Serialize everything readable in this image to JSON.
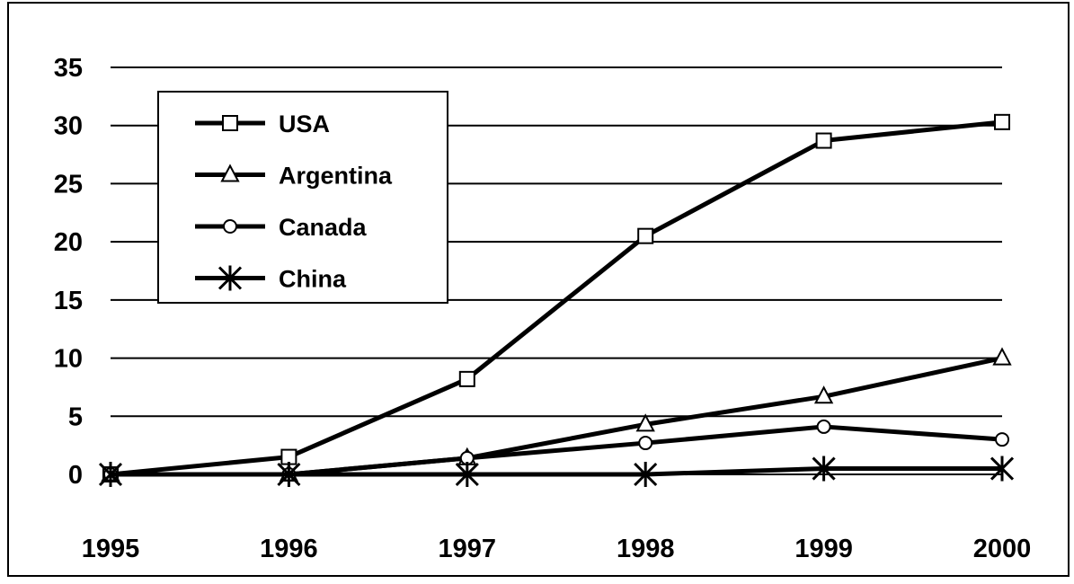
{
  "chart_data": {
    "type": "line",
    "title": "",
    "xlabel": "",
    "ylabel": "",
    "x": [
      "1995",
      "1996",
      "1997",
      "1998",
      "1999",
      "2000"
    ],
    "ylim": [
      0,
      35
    ],
    "yticks": [
      "0",
      "5",
      "10",
      "15",
      "20",
      "25",
      "30",
      "35"
    ],
    "grid": "horizontal",
    "legend_position": "top-left",
    "series": [
      {
        "name": "USA",
        "marker": "square",
        "values": [
          0,
          1.5,
          8.2,
          20.5,
          28.7,
          30.3
        ]
      },
      {
        "name": "Argentina",
        "marker": "triangle",
        "values": [
          0,
          0,
          1.4,
          4.3,
          6.7,
          10.0
        ]
      },
      {
        "name": "Canada",
        "marker": "circle",
        "values": [
          0,
          0,
          1.4,
          2.7,
          4.1,
          3.0
        ]
      },
      {
        "name": "China",
        "marker": "asterisk",
        "values": [
          0,
          0,
          0,
          0,
          0.5,
          0.5
        ]
      }
    ],
    "line_color": "#000000"
  }
}
